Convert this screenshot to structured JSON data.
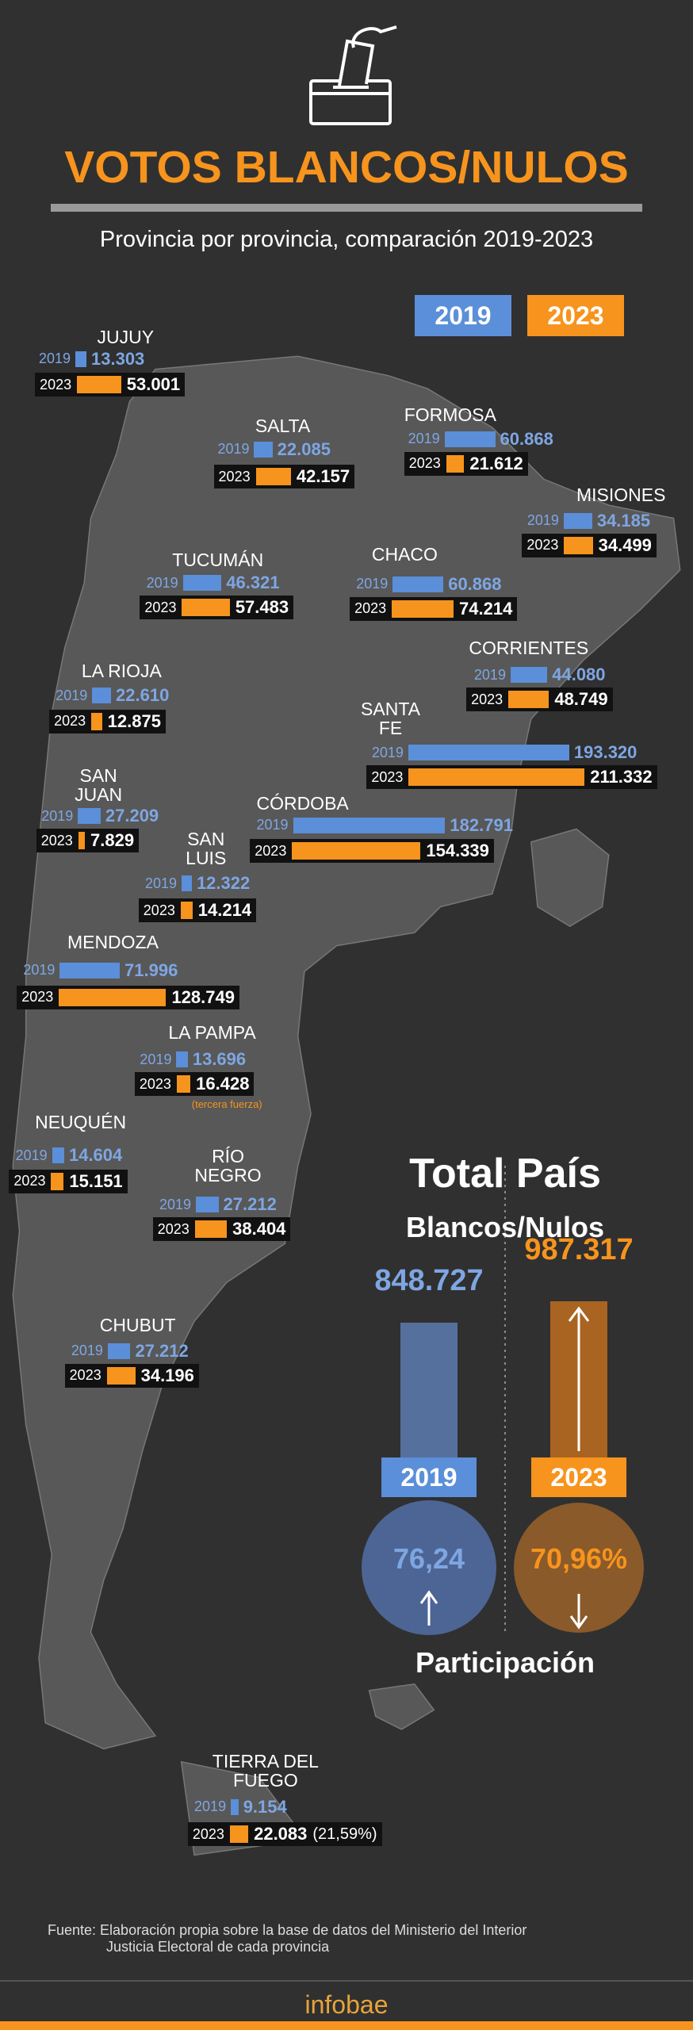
{
  "header": {
    "title": "VOTOS BLANCOS/NULOS",
    "subtitle": "Provincia por provincia, comparación 2019-2023"
  },
  "chart_data": {
    "type": "bar",
    "categories": [
      "JUJUY",
      "SALTA",
      "FORMOSA",
      "MISIONES",
      "TUCUMÁN",
      "CHACO",
      "CORRIENTES",
      "LA RIOJA",
      "SANTA FE",
      "SAN JUAN",
      "CÓRDOBA",
      "SAN LUIS",
      "MENDOZA",
      "LA PAMPA",
      "NEUQUÉN",
      "RÍO NEGRO",
      "CHUBUT",
      "TIERRA DEL FUEGO"
    ],
    "series": [
      {
        "name": "2019",
        "color": "#5b8fd9",
        "values": [
          13303,
          22085,
          60868,
          34185,
          46321,
          60868,
          44080,
          22610,
          193320,
          27209,
          182791,
          12322,
          71996,
          13696,
          14604,
          27212,
          27212,
          9154
        ],
        "value_labels": [
          "13.303",
          "22.085",
          "60.868",
          "34.185",
          "46.321",
          "60.868",
          "44.080",
          "22.610",
          "193.320",
          "27.209",
          "182.791",
          "12.322",
          "71.996",
          "13.696",
          "14.604",
          "27.212",
          "27.212",
          "9.154"
        ]
      },
      {
        "name": "2023",
        "color": "#f7941d",
        "values": [
          53001,
          42157,
          21612,
          34499,
          57483,
          74214,
          48749,
          12875,
          211332,
          7829,
          154339,
          14214,
          128749,
          16428,
          15151,
          38404,
          34196,
          22083
        ],
        "value_labels": [
          "53.001",
          "42.157",
          "21.612",
          "34.499",
          "57.483",
          "74.214",
          "48.749",
          "12.875",
          "211.332",
          "7.829",
          "154.339",
          "14.214",
          "128.749",
          "16.428",
          "15.151",
          "38.404",
          "34.196",
          "22.083"
        ]
      }
    ],
    "annotations": [
      "(tercera fuerza)",
      "(21,59%)"
    ]
  },
  "totals": {
    "title": "Total País",
    "subtitle": "Blancos/Nulos",
    "values": [
      848727,
      987317
    ],
    "value_labels": [
      "848.727",
      "987.317"
    ],
    "participation_title": "Participación",
    "participation": [
      76.24,
      70.96
    ],
    "participation_labels": [
      "76,24",
      "70,96%"
    ]
  },
  "source": {
    "lines": [
      "Fuente: Elaboración propia sobre la base de datos del Ministerio del Interior",
      "Justicia Electoral de cada provincia"
    ]
  },
  "brand": "infobae"
}
